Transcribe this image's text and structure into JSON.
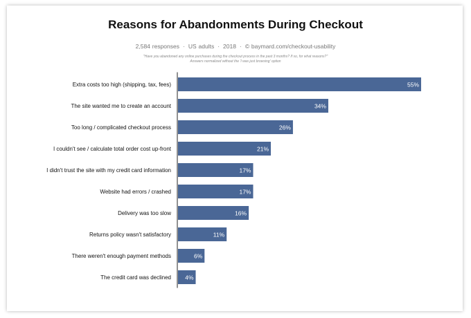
{
  "chart_data": {
    "type": "bar",
    "orientation": "horizontal",
    "title": "Reasons for Abandonments During Checkout",
    "subtitle": {
      "responses": "2,584 responses",
      "audience": "US adults",
      "year": "2018",
      "source": "© baymard.com/checkout-usability",
      "separator": "·"
    },
    "notes": [
      "\"Have you abandoned any online purchases during the checkout process in the past 3 months? If so, for what reasons?\"",
      "Answers normalized without the 'I was just browsing' option"
    ],
    "categories": [
      "Extra costs too high (shipping, tax, fees)",
      "The site wanted me to create an account",
      "Too long / complicated checkout process",
      "I couldn't see / calculate total order cost up-front",
      "I didn't trust the site with my credit card information",
      "Website had errors / crashed",
      "Delivery was too slow",
      "Returns policy wasn't satisfactory",
      "There weren't enough payment methods",
      "The credit card was declined"
    ],
    "values": [
      55,
      34,
      26,
      21,
      17,
      17,
      16,
      11,
      6,
      4
    ],
    "value_labels": [
      "55%",
      "34%",
      "26%",
      "21%",
      "17%",
      "17%",
      "16%",
      "11%",
      "6%",
      "4%"
    ],
    "bar_color": "#4a6796",
    "xlim": [
      0,
      55
    ],
    "grid": false,
    "legend": "none"
  }
}
